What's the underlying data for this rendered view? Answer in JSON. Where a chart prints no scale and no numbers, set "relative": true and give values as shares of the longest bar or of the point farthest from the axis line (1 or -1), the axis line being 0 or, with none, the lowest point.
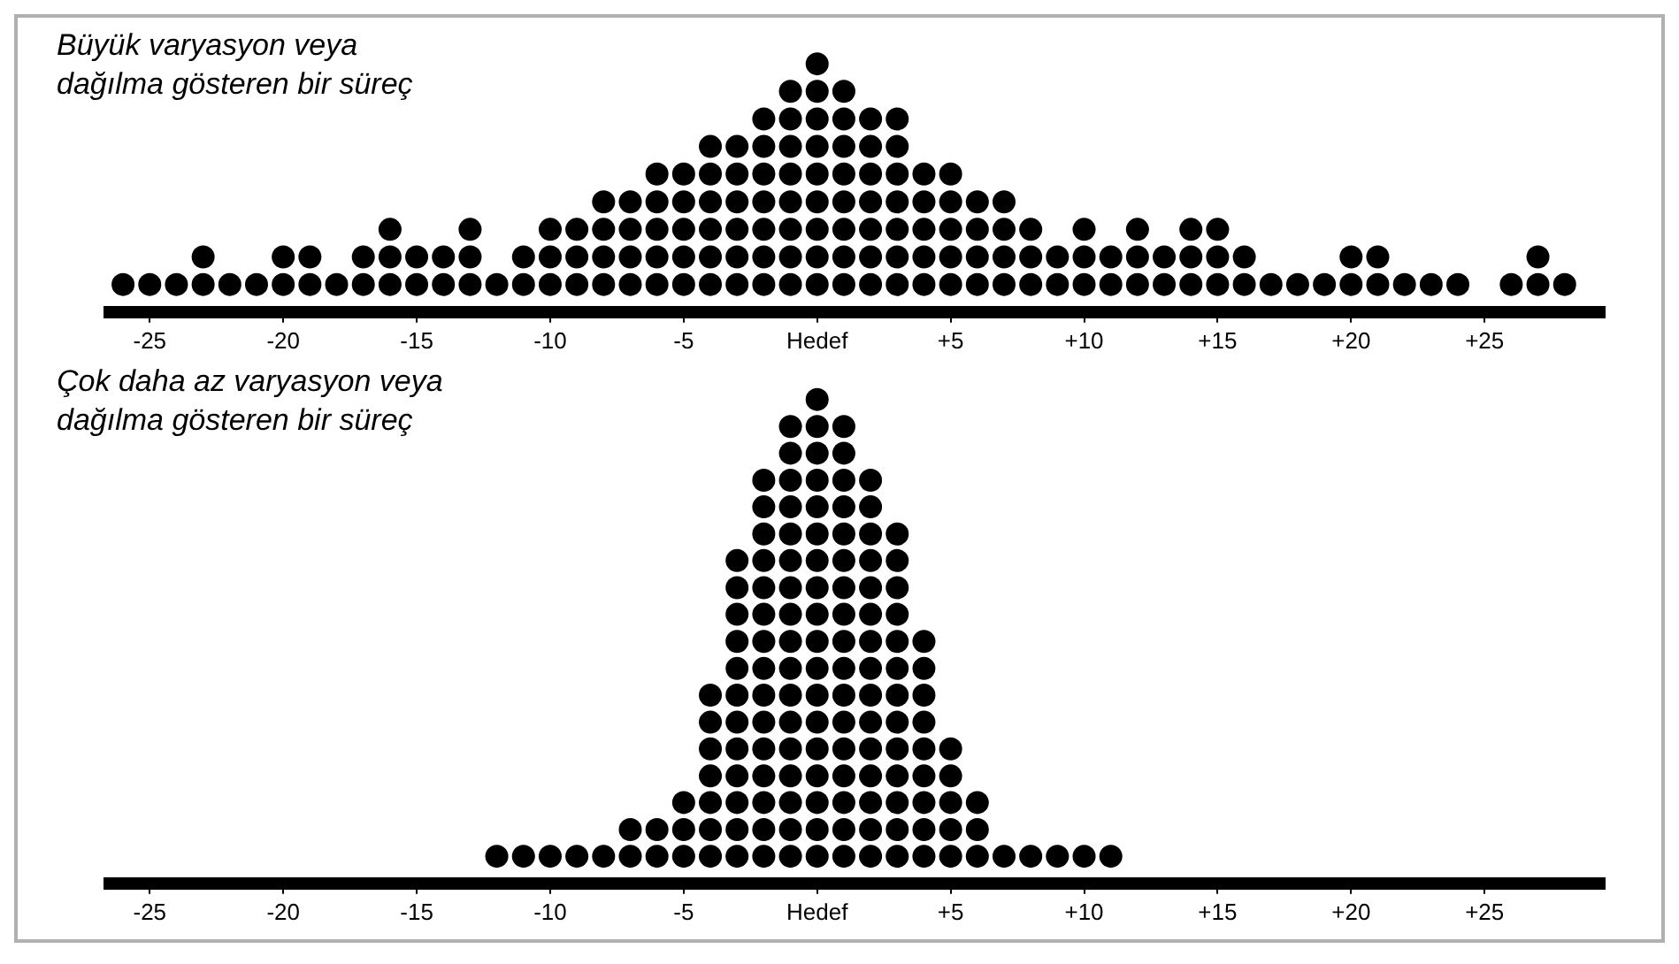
{
  "chart_data": [
    {
      "type": "scatter",
      "title": "Büyük varyasyon veya dağılma gösteren bir süreç",
      "marker": "circle",
      "grid": false,
      "tick_labels": "x",
      "relative": true,
      "xlim": [
        -26.5,
        29.5
      ],
      "xticks": [
        -25,
        -20,
        -15,
        -10,
        -5,
        {
          "value": 0,
          "label": "Hedef"
        },
        {
          "value": 5,
          "label": "+5"
        },
        {
          "value": 10,
          "label": "+10"
        },
        {
          "value": 15,
          "label": "+15"
        },
        {
          "value": 20,
          "label": "+20"
        },
        {
          "value": 25,
          "label": "+25"
        }
      ],
      "series": [
        {
          "color": "#000000",
          "x": [
            -26,
            -25,
            -24,
            -23,
            -23,
            -22,
            -21,
            -20,
            -20,
            -19,
            -19,
            -18,
            -17,
            -17,
            -16,
            -16,
            -16,
            -15,
            -15,
            -14,
            -14,
            -13,
            -13,
            -13,
            -12,
            -11,
            -11,
            -10,
            -10,
            -10,
            -9,
            -9,
            -9,
            -8,
            -8,
            -8,
            -8,
            -7,
            -7,
            -7,
            -7,
            -6,
            -6,
            -6,
            -6,
            -6,
            -5,
            -5,
            -5,
            -5,
            -5,
            -4,
            -4,
            -4,
            -4,
            -4,
            -4,
            -3,
            -3,
            -3,
            -3,
            -3,
            -3,
            -2,
            -2,
            -2,
            -2,
            -2,
            -2,
            -2,
            -1,
            -1,
            -1,
            -1,
            -1,
            -1,
            -1,
            -1,
            0,
            0,
            0,
            0,
            0,
            0,
            0,
            0,
            0,
            1,
            1,
            1,
            1,
            1,
            1,
            1,
            1,
            2,
            2,
            2,
            2,
            2,
            2,
            2,
            3,
            3,
            3,
            3,
            3,
            3,
            3,
            4,
            4,
            4,
            4,
            4,
            5,
            5,
            5,
            5,
            5,
            6,
            6,
            6,
            6,
            7,
            7,
            7,
            7,
            8,
            8,
            8,
            9,
            9,
            10,
            10,
            10,
            11,
            11,
            12,
            12,
            12,
            13,
            13,
            14,
            14,
            14,
            15,
            15,
            15,
            16,
            16,
            17,
            18,
            19,
            20,
            20,
            21,
            21,
            22,
            23,
            24,
            26,
            27,
            27,
            28
          ],
          "values": [
            0.111,
            0.111,
            0.111,
            0.111,
            0.222,
            0.111,
            0.111,
            0.111,
            0.222,
            0.111,
            0.222,
            0.111,
            0.111,
            0.222,
            0.111,
            0.222,
            0.333,
            0.111,
            0.222,
            0.111,
            0.222,
            0.111,
            0.222,
            0.333,
            0.111,
            0.111,
            0.222,
            0.111,
            0.222,
            0.333,
            0.111,
            0.222,
            0.333,
            0.111,
            0.222,
            0.333,
            0.444,
            0.111,
            0.222,
            0.333,
            0.444,
            0.111,
            0.222,
            0.333,
            0.444,
            0.556,
            0.111,
            0.222,
            0.333,
            0.444,
            0.556,
            0.111,
            0.222,
            0.333,
            0.444,
            0.556,
            0.667,
            0.111,
            0.222,
            0.333,
            0.444,
            0.556,
            0.667,
            0.111,
            0.222,
            0.333,
            0.444,
            0.556,
            0.667,
            0.778,
            0.111,
            0.222,
            0.333,
            0.444,
            0.556,
            0.667,
            0.778,
            0.889,
            0.111,
            0.222,
            0.333,
            0.444,
            0.556,
            0.667,
            0.778,
            0.889,
            1,
            0.111,
            0.222,
            0.333,
            0.444,
            0.556,
            0.667,
            0.778,
            0.889,
            0.111,
            0.222,
            0.333,
            0.444,
            0.556,
            0.667,
            0.778,
            0.111,
            0.222,
            0.333,
            0.444,
            0.556,
            0.667,
            0.778,
            0.111,
            0.222,
            0.333,
            0.444,
            0.556,
            0.111,
            0.222,
            0.333,
            0.444,
            0.556,
            0.111,
            0.222,
            0.333,
            0.444,
            0.111,
            0.222,
            0.333,
            0.444,
            0.111,
            0.222,
            0.333,
            0.111,
            0.222,
            0.111,
            0.222,
            0.333,
            0.111,
            0.222,
            0.111,
            0.222,
            0.333,
            0.111,
            0.222,
            0.111,
            0.222,
            0.333,
            0.111,
            0.222,
            0.333,
            0.111,
            0.222,
            0.111,
            0.111,
            0.111,
            0.111,
            0.222,
            0.111,
            0.222,
            0.111,
            0.111,
            0.111,
            0.111,
            0.111,
            0.222,
            0.111
          ]
        }
      ]
    },
    {
      "type": "scatter",
      "title": "Çok daha az varyasyon veya dağılma gösteren bir süreç",
      "marker": "circle",
      "grid": false,
      "tick_labels": "x",
      "relative": true,
      "xlim": [
        -26.5,
        29.5
      ],
      "xticks": [
        -25,
        -20,
        -15,
        -10,
        -5,
        {
          "value": 0,
          "label": "Hedef"
        },
        {
          "value": 5,
          "label": "+5"
        },
        {
          "value": 10,
          "label": "+10"
        },
        {
          "value": 15,
          "label": "+15"
        },
        {
          "value": 20,
          "label": "+20"
        },
        {
          "value": 25,
          "label": "+25"
        }
      ],
      "series": [
        {
          "color": "#000000",
          "x": [
            -12,
            -11,
            -10,
            -9,
            -8,
            -7,
            -7,
            -6,
            -6,
            -5,
            -5,
            -5,
            -4,
            -4,
            -4,
            -4,
            -4,
            -4,
            -4,
            -3,
            -3,
            -3,
            -3,
            -3,
            -3,
            -3,
            -3,
            -3,
            -3,
            -3,
            -3,
            -2,
            -2,
            -2,
            -2,
            -2,
            -2,
            -2,
            -2,
            -2,
            -2,
            -2,
            -2,
            -2,
            -2,
            -2,
            -1,
            -1,
            -1,
            -1,
            -1,
            -1,
            -1,
            -1,
            -1,
            -1,
            -1,
            -1,
            -1,
            -1,
            -1,
            -1,
            -1,
            0,
            0,
            0,
            0,
            0,
            0,
            0,
            0,
            0,
            0,
            0,
            0,
            0,
            0,
            0,
            0,
            0,
            0,
            1,
            1,
            1,
            1,
            1,
            1,
            1,
            1,
            1,
            1,
            1,
            1,
            1,
            1,
            1,
            1,
            1,
            2,
            2,
            2,
            2,
            2,
            2,
            2,
            2,
            2,
            2,
            2,
            2,
            2,
            2,
            2,
            3,
            3,
            3,
            3,
            3,
            3,
            3,
            3,
            3,
            3,
            3,
            3,
            3,
            4,
            4,
            4,
            4,
            4,
            4,
            4,
            4,
            4,
            5,
            5,
            5,
            5,
            5,
            6,
            6,
            6,
            7,
            8,
            9,
            10,
            11
          ],
          "values": [
            0.056,
            0.056,
            0.056,
            0.056,
            0.056,
            0.056,
            0.111,
            0.056,
            0.111,
            0.056,
            0.111,
            0.167,
            0.056,
            0.111,
            0.167,
            0.222,
            0.278,
            0.333,
            0.389,
            0.056,
            0.111,
            0.167,
            0.222,
            0.278,
            0.333,
            0.389,
            0.444,
            0.5,
            0.556,
            0.611,
            0.667,
            0.056,
            0.111,
            0.167,
            0.222,
            0.278,
            0.333,
            0.389,
            0.444,
            0.5,
            0.556,
            0.611,
            0.667,
            0.722,
            0.778,
            0.833,
            0.056,
            0.111,
            0.167,
            0.222,
            0.278,
            0.333,
            0.389,
            0.444,
            0.5,
            0.556,
            0.611,
            0.667,
            0.722,
            0.778,
            0.833,
            0.889,
            0.944,
            0.056,
            0.111,
            0.167,
            0.222,
            0.278,
            0.333,
            0.389,
            0.444,
            0.5,
            0.556,
            0.611,
            0.667,
            0.722,
            0.778,
            0.833,
            0.889,
            0.944,
            1,
            0.056,
            0.111,
            0.167,
            0.222,
            0.278,
            0.333,
            0.389,
            0.444,
            0.5,
            0.556,
            0.611,
            0.667,
            0.722,
            0.778,
            0.833,
            0.889,
            0.944,
            0.056,
            0.111,
            0.167,
            0.222,
            0.278,
            0.333,
            0.389,
            0.444,
            0.5,
            0.556,
            0.611,
            0.667,
            0.722,
            0.778,
            0.833,
            0.056,
            0.111,
            0.167,
            0.222,
            0.278,
            0.333,
            0.389,
            0.444,
            0.5,
            0.556,
            0.611,
            0.667,
            0.722,
            0.056,
            0.111,
            0.167,
            0.222,
            0.278,
            0.333,
            0.389,
            0.444,
            0.5,
            0.056,
            0.111,
            0.167,
            0.222,
            0.278,
            0.056,
            0.111,
            0.167,
            0.056,
            0.056,
            0.056,
            0.056,
            0.056
          ]
        }
      ]
    }
  ]
}
